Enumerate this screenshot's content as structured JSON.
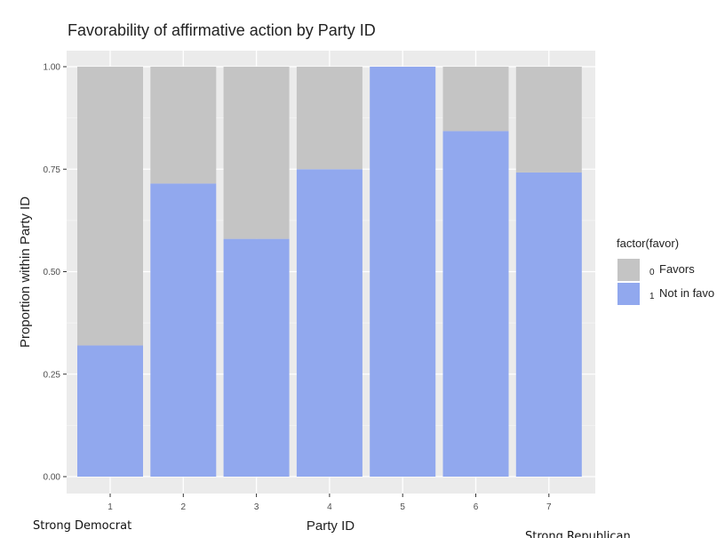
{
  "chart_data": {
    "type": "bar",
    "stacked": true,
    "title": "Favorability of affirmative action by Party ID",
    "xlabel": "Party ID",
    "ylabel": "Proportion within Party ID",
    "categories": [
      "1",
      "2",
      "3",
      "4",
      "5",
      "6",
      "7"
    ],
    "ylim": [
      0,
      1
    ],
    "yticks": [
      "0.00",
      "0.25",
      "0.50",
      "0.75",
      "1.00"
    ],
    "series": [
      {
        "code": "1",
        "name": "Not in favo",
        "color": "#91a8ee",
        "values": [
          0.32,
          0.715,
          0.58,
          0.75,
          1.0,
          0.843,
          0.742
        ]
      },
      {
        "code": "0",
        "name": "Favors",
        "color": "#c4c4c4",
        "values": [
          0.68,
          0.285,
          0.42,
          0.25,
          0.0,
          0.157,
          0.258
        ]
      }
    ],
    "legend": {
      "title": "factor(favor)",
      "position": "right",
      "items": [
        {
          "code": "0",
          "label": "Favors",
          "color": "#c4c4c4"
        },
        {
          "code": "1",
          "label": "Not in favo",
          "color": "#91a8ee"
        }
      ]
    },
    "grid": true,
    "panel_background": "#ebebeb",
    "annotations": {
      "left": "Strong Democrat",
      "right": "Strong Republican"
    }
  }
}
